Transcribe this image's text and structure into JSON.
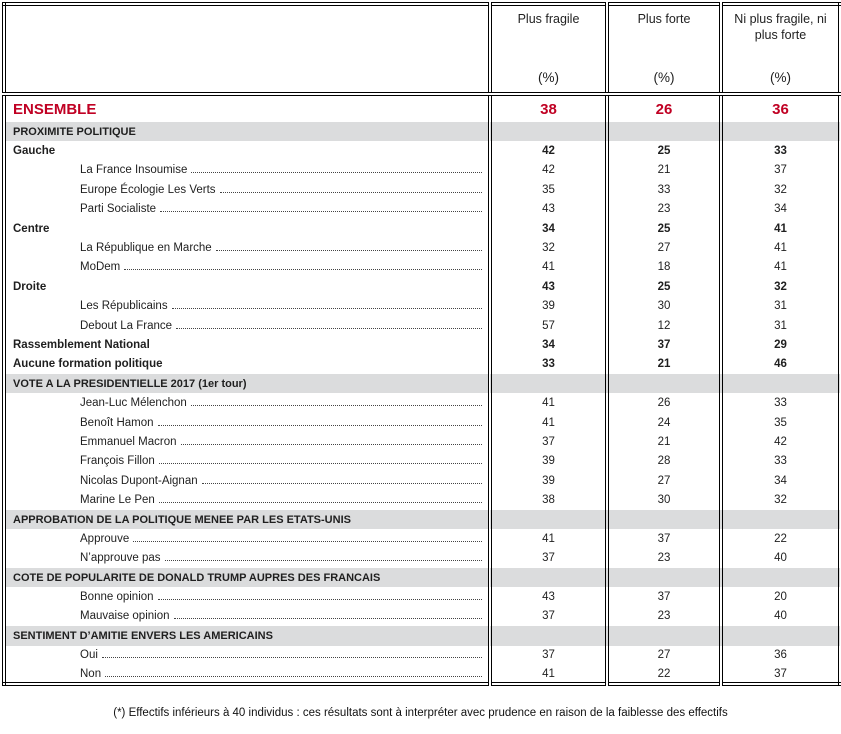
{
  "palette": {
    "accent": "#C00023",
    "section_bg": "#DBDCDD",
    "border": "#000000"
  },
  "table": {
    "header": {
      "columns": [
        {
          "label": "Plus fragile",
          "unit": "(%)"
        },
        {
          "label": "Plus forte",
          "unit": "(%)"
        },
        {
          "label": "Ni plus fragile, ni plus forte",
          "unit": "(%)"
        }
      ]
    },
    "rows": [
      {
        "type": "ensemble",
        "label": "ENSEMBLE",
        "values": [
          38,
          26,
          36
        ]
      },
      {
        "type": "section",
        "label": "PROXIMITE POLITIQUE"
      },
      {
        "type": "group",
        "label": "Gauche",
        "values": [
          42,
          25,
          33
        ]
      },
      {
        "type": "item",
        "label": "La France Insoumise",
        "values": [
          42,
          21,
          37
        ]
      },
      {
        "type": "item",
        "label": "Europe Écologie Les Verts",
        "values": [
          35,
          33,
          32
        ]
      },
      {
        "type": "item",
        "label": "Parti Socialiste",
        "values": [
          43,
          23,
          34
        ]
      },
      {
        "type": "group",
        "label": "Centre",
        "values": [
          34,
          25,
          41
        ]
      },
      {
        "type": "item",
        "label": "La République en Marche",
        "values": [
          32,
          27,
          41
        ]
      },
      {
        "type": "item",
        "label": "MoDem",
        "values": [
          41,
          18,
          41
        ]
      },
      {
        "type": "group",
        "label": "Droite",
        "values": [
          43,
          25,
          32
        ]
      },
      {
        "type": "item",
        "label": "Les Républicains",
        "values": [
          39,
          30,
          31
        ]
      },
      {
        "type": "item",
        "label": "Debout La France",
        "values": [
          57,
          12,
          31
        ]
      },
      {
        "type": "group",
        "label": "Rassemblement National",
        "values": [
          34,
          37,
          29
        ]
      },
      {
        "type": "group",
        "label": "Aucune formation politique",
        "values": [
          33,
          21,
          46
        ]
      },
      {
        "type": "section",
        "label": "VOTE A LA PRESIDENTIELLE 2017 (1er tour)"
      },
      {
        "type": "item",
        "label": "Jean-Luc Mélenchon",
        "values": [
          41,
          26,
          33
        ]
      },
      {
        "type": "item",
        "label": "Benoît Hamon",
        "values": [
          41,
          24,
          35
        ]
      },
      {
        "type": "item",
        "label": "Emmanuel Macron",
        "values": [
          37,
          21,
          42
        ]
      },
      {
        "type": "item",
        "label": "François Fillon",
        "values": [
          39,
          28,
          33
        ]
      },
      {
        "type": "item",
        "label": "Nicolas Dupont-Aignan",
        "values": [
          39,
          27,
          34
        ]
      },
      {
        "type": "item",
        "label": "Marine Le Pen",
        "values": [
          38,
          30,
          32
        ]
      },
      {
        "type": "section",
        "label": "APPROBATION DE LA POLITIQUE MENEE PAR LES ETATS-UNIS"
      },
      {
        "type": "item",
        "label": "Approuve",
        "values": [
          41,
          37,
          22
        ]
      },
      {
        "type": "item",
        "label": "N’approuve pas",
        "values": [
          37,
          23,
          40
        ]
      },
      {
        "type": "section",
        "label": "COTE DE POPULARITE DE DONALD TRUMP AUPRES DES FRANCAIS"
      },
      {
        "type": "item",
        "label": "Bonne opinion",
        "values": [
          43,
          37,
          20
        ]
      },
      {
        "type": "item",
        "label": "Mauvaise opinion",
        "values": [
          37,
          23,
          40
        ]
      },
      {
        "type": "section",
        "label": "SENTIMENT D’AMITIE ENVERS LES AMERICAINS"
      },
      {
        "type": "item",
        "label": "Oui",
        "values": [
          37,
          27,
          36
        ]
      },
      {
        "type": "item",
        "label": "Non",
        "values": [
          41,
          22,
          37
        ]
      }
    ]
  },
  "footnote": "(*) Effectifs inférieurs à 40 individus : ces résultats sont à interpréter avec prudence en raison de la faiblesse des effectifs"
}
